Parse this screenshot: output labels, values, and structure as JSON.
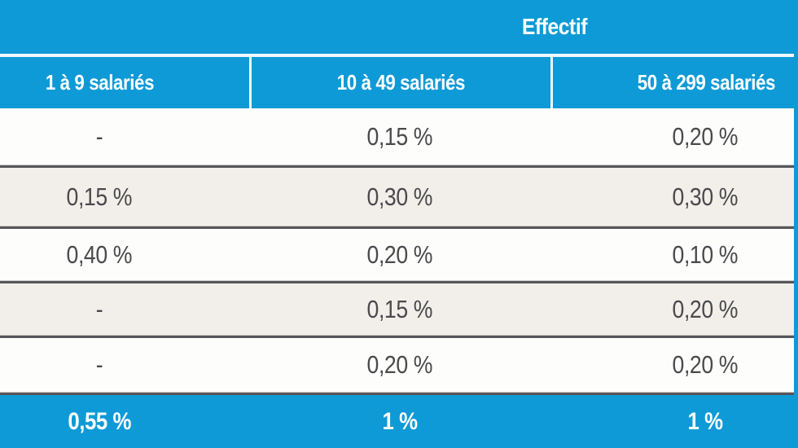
{
  "chart_data": {
    "type": "table",
    "group_header": "Effectif",
    "columns": [
      "1 à 9 salariés",
      "10 à 49 salariés",
      "50 à 299 salariés"
    ],
    "rows": [
      [
        "-",
        "0,15 %",
        "0,20 %"
      ],
      [
        "0,15 %",
        "0,30 %",
        "0,30 %"
      ],
      [
        "0,40 %",
        "0,20 %",
        "0,10 %"
      ],
      [
        "-",
        "0,15 %",
        "0,20 %"
      ],
      [
        "-",
        "0,20 %",
        "0,20 %"
      ]
    ],
    "footer_row": [
      "0,55 %",
      "1 %",
      "1 %"
    ],
    "layout_hints": {
      "group_header_spans": "all columns, label offset toward right",
      "alternating_row_shading": true,
      "column_separators": "white lines in blue header only"
    }
  },
  "colors": {
    "header_blue": "#0e9ad6",
    "row_alt_beige": "#f2efea",
    "row_white": "#fdfdfc",
    "border_dark": "#56565a",
    "text_dark": "#4a4a4d",
    "text_white": "#ffffff"
  }
}
